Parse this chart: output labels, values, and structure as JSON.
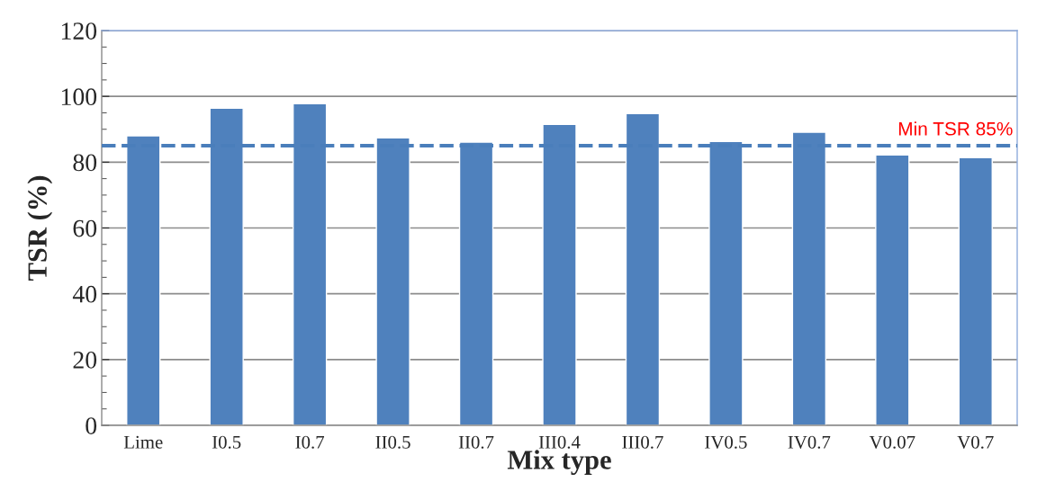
{
  "chart_data": {
    "type": "bar",
    "xlabel": "Mix type",
    "ylabel": "TSR (%)",
    "categories": [
      "Lime",
      "I0.5",
      "I0.7",
      "II0.5",
      "II0.7",
      "III0.4",
      "III0.7",
      "IV0.5",
      "IV0.7",
      "V0.07",
      "V0.7"
    ],
    "values": [
      88.0,
      96.4,
      97.8,
      87.4,
      86.1,
      91.5,
      94.8,
      86.3,
      89.1,
      82.2,
      81.4
    ],
    "color": "#4f81bd",
    "ylim": [
      0,
      120
    ],
    "yticks": [
      0,
      20,
      40,
      60,
      80,
      100,
      120
    ],
    "grid": "y",
    "ref_lines": [
      {
        "axis": "y",
        "value": 85,
        "label": "Min TSR 85%",
        "color": "#4a7ebb",
        "line_style": "dashed"
      }
    ]
  }
}
